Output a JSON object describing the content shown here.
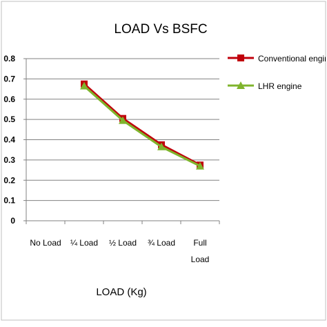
{
  "chart_data": {
    "type": "line",
    "title": "LOAD Vs BSFC",
    "xlabel": "LOAD (Kg)",
    "ylabel": "",
    "categories": [
      "No Load",
      "¼ Load",
      "½ Load",
      "¾ Load",
      "Full Load"
    ],
    "category_lines": [
      [
        "No Load"
      ],
      [
        "¼ Load"
      ],
      [
        "½ Load"
      ],
      [
        "¾ Load"
      ],
      [
        "Full",
        "Load"
      ]
    ],
    "yticks": [
      "0",
      "0.1",
      "0.2",
      "0.3",
      "0.4",
      "0.5",
      "0.6",
      "0.7",
      "0.8"
    ],
    "ylim": [
      0,
      0.8
    ],
    "grid": "horizontal",
    "legend_position": "right",
    "series": [
      {
        "name": "Conventional engine",
        "values": [
          null,
          0.675,
          0.505,
          0.375,
          0.275
        ],
        "color": "#c0000b",
        "marker": "square"
      },
      {
        "name": "LHR engine",
        "values": [
          null,
          0.665,
          0.495,
          0.365,
          0.27
        ],
        "color": "#7fb42c",
        "marker": "triangle"
      }
    ]
  }
}
